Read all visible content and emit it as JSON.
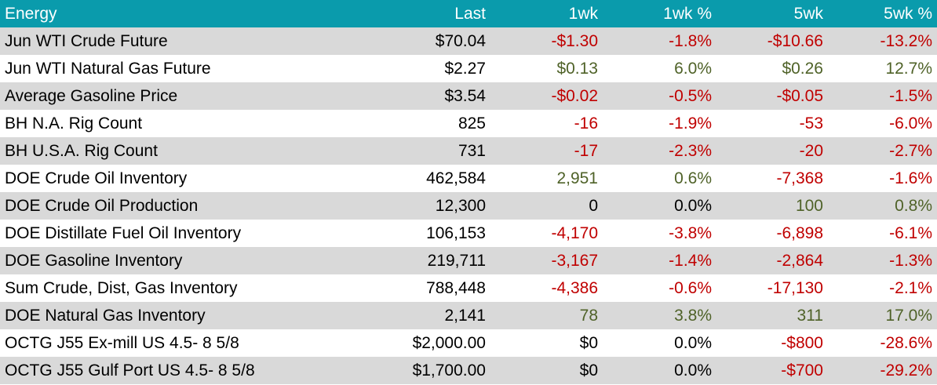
{
  "colors": {
    "header_bg": "#0a9bac",
    "row_band": "#d9d9d9",
    "row_plain": "#ffffff",
    "negative": "#c00000",
    "positive": "#4f6228",
    "neutral": "#000000"
  },
  "header": {
    "category": "Energy",
    "last": "Last",
    "wk1": "1wk",
    "wk1_pct": "1wk %",
    "wk5": "5wk",
    "wk5_pct": "5wk %"
  },
  "rows": [
    {
      "name": "Jun WTI Crude Future",
      "last": "$70.04",
      "wk1": "-$1.30",
      "wk1_pct": "-1.8%",
      "wk5": "-$10.66",
      "wk5_pct": "-13.2%",
      "wk1_dir": "neg",
      "wk5_dir": "neg"
    },
    {
      "name": "Jun WTI Natural Gas Future",
      "last": "$2.27",
      "wk1": "$0.13",
      "wk1_pct": "6.0%",
      "wk5": "$0.26",
      "wk5_pct": "12.7%",
      "wk1_dir": "pos",
      "wk5_dir": "pos"
    },
    {
      "name": "Average Gasoline Price",
      "last": "$3.54",
      "wk1": "-$0.02",
      "wk1_pct": "-0.5%",
      "wk5": "-$0.05",
      "wk5_pct": "-1.5%",
      "wk1_dir": "neg",
      "wk5_dir": "neg"
    },
    {
      "name": "BH N.A. Rig Count",
      "last": "825",
      "wk1": "-16",
      "wk1_pct": "-1.9%",
      "wk5": "-53",
      "wk5_pct": "-6.0%",
      "wk1_dir": "neg",
      "wk5_dir": "neg"
    },
    {
      "name": "BH U.S.A. Rig Count",
      "last": "731",
      "wk1": "-17",
      "wk1_pct": "-2.3%",
      "wk5": "-20",
      "wk5_pct": "-2.7%",
      "wk1_dir": "neg",
      "wk5_dir": "neg"
    },
    {
      "name": "DOE Crude Oil Inventory",
      "last": "462,584",
      "wk1": "2,951",
      "wk1_pct": "0.6%",
      "wk5": "-7,368",
      "wk5_pct": "-1.6%",
      "wk1_dir": "pos",
      "wk5_dir": "neg"
    },
    {
      "name": "DOE Crude Oil Production",
      "last": "12,300",
      "wk1": "0",
      "wk1_pct": "0.0%",
      "wk5": "100",
      "wk5_pct": "0.8%",
      "wk1_dir": "neu",
      "wk5_dir": "pos"
    },
    {
      "name": "DOE Distillate Fuel Oil Inventory",
      "last": "106,153",
      "wk1": "-4,170",
      "wk1_pct": "-3.8%",
      "wk5": "-6,898",
      "wk5_pct": "-6.1%",
      "wk1_dir": "neg",
      "wk5_dir": "neg"
    },
    {
      "name": "DOE Gasoline Inventory",
      "last": "219,711",
      "wk1": "-3,167",
      "wk1_pct": "-1.4%",
      "wk5": "-2,864",
      "wk5_pct": "-1.3%",
      "wk1_dir": "neg",
      "wk5_dir": "neg"
    },
    {
      "name": "Sum Crude, Dist, Gas Inventory",
      "last": "788,448",
      "wk1": "-4,386",
      "wk1_pct": "-0.6%",
      "wk5": "-17,130",
      "wk5_pct": "-2.1%",
      "wk1_dir": "neg",
      "wk5_dir": "neg"
    },
    {
      "name": "DOE Natural Gas Inventory",
      "last": "2,141",
      "wk1": "78",
      "wk1_pct": "3.8%",
      "wk5": "311",
      "wk5_pct": "17.0%",
      "wk1_dir": "pos",
      "wk5_dir": "pos"
    },
    {
      "name": "OCTG J55 Ex-mill US 4.5- 8 5/8",
      "last": "$2,000.00",
      "wk1": "$0",
      "wk1_pct": "0.0%",
      "wk5": "-$800",
      "wk5_pct": "-28.6%",
      "wk1_dir": "neu",
      "wk5_dir": "neg"
    },
    {
      "name": "OCTG J55 Gulf Port US 4.5- 8 5/8",
      "last": "$1,700.00",
      "wk1": "$0",
      "wk1_pct": "0.0%",
      "wk5": "-$700",
      "wk5_pct": "-29.2%",
      "wk1_dir": "neu",
      "wk5_dir": "neg"
    }
  ]
}
